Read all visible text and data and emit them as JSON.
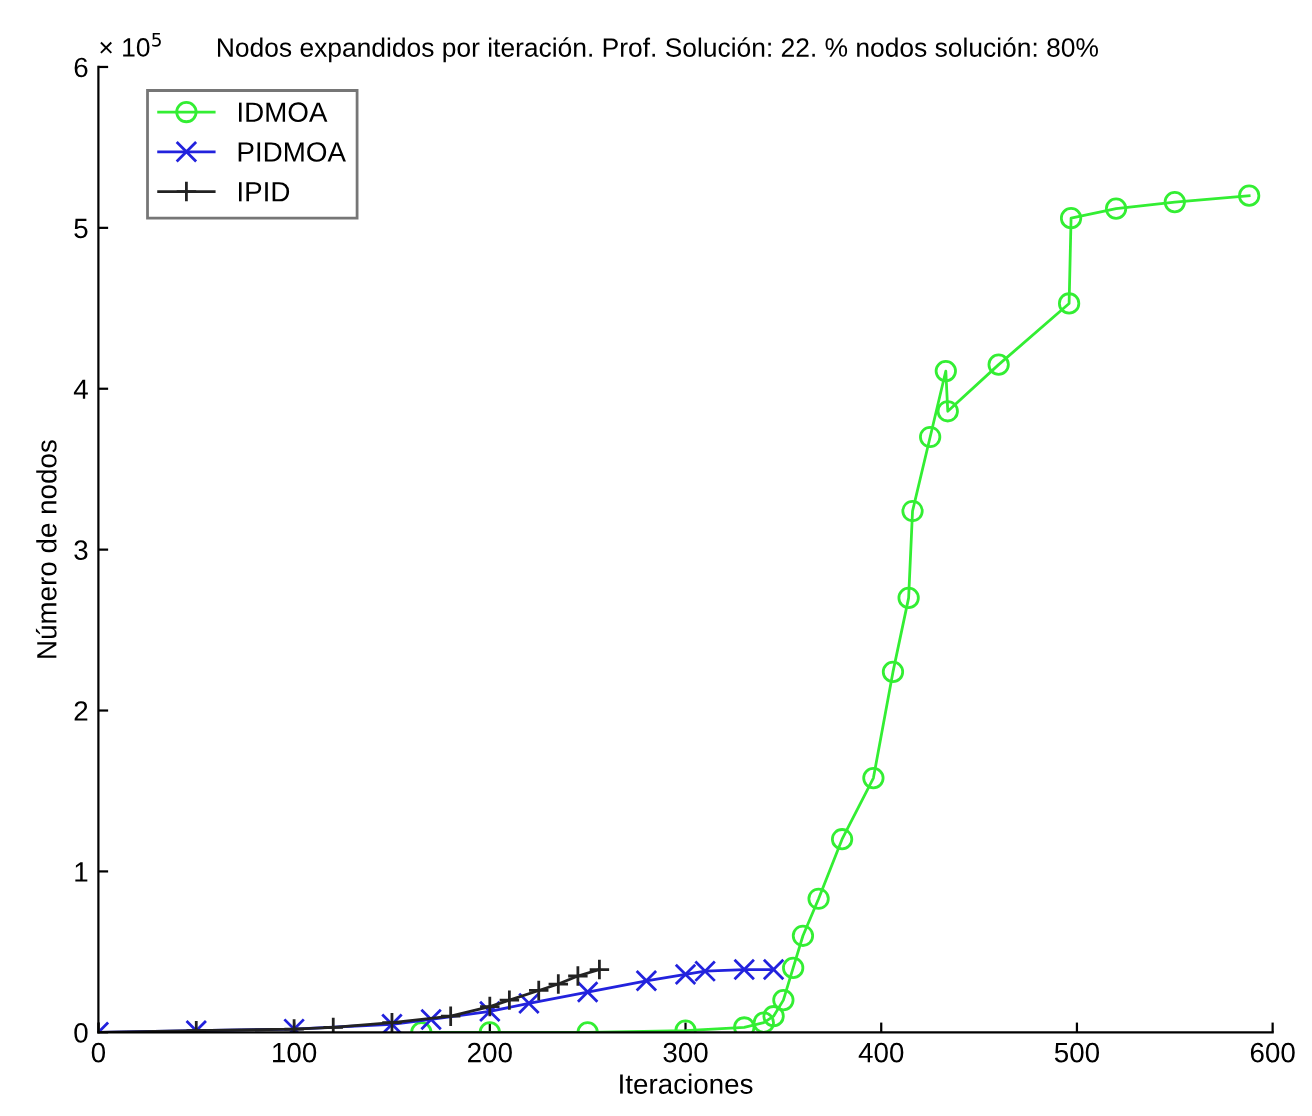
{
  "chart_data": {
    "type": "line",
    "title": "Nodos expandidos por iteración. Prof. Solución: 22. % nodos solución: 80%",
    "xlabel": "Iteraciones",
    "ylabel": "Número de nodos",
    "annotations": [
      "× 10$^{5}$"
    ],
    "xlim": [
      0,
      600
    ],
    "xticks": [
      0,
      100,
      200,
      300,
      400,
      500,
      600
    ],
    "ylim": [
      0,
      6
    ],
    "yticks": [
      0,
      1,
      2,
      3,
      4,
      5,
      6
    ],
    "grid": false,
    "legend": "top left",
    "series": [
      {
        "name": "IDMOA",
        "color": "#33ee33",
        "marker": "circle",
        "x": [
          165,
          200,
          250,
          300,
          330,
          340,
          345,
          350,
          355,
          360,
          368,
          380,
          396,
          406,
          414,
          416,
          425,
          433,
          434,
          460,
          496,
          497,
          520,
          550,
          588
        ],
        "values": [
          0,
          0,
          0,
          0.01,
          0.03,
          0.06,
          0.1,
          0.2,
          0.4,
          0.6,
          0.83,
          1.2,
          1.58,
          2.24,
          2.7,
          3.24,
          3.7,
          4.11,
          3.86,
          4.15,
          4.53,
          5.06,
          5.12,
          5.16,
          5.2
        ]
      },
      {
        "name": "PIDMOA",
        "color": "#2222dd",
        "marker": "cross",
        "x": [
          0,
          50,
          100,
          150,
          170,
          200,
          220,
          250,
          280,
          300,
          310,
          330,
          345
        ],
        "values": [
          0,
          0.01,
          0.02,
          0.05,
          0.08,
          0.13,
          0.18,
          0.25,
          0.32,
          0.36,
          0.38,
          0.39,
          0.39
        ]
      },
      {
        "name": "IPID",
        "color": "#222222",
        "marker": "plus",
        "x": [
          0,
          50,
          100,
          120,
          150,
          180,
          200,
          210,
          225,
          235,
          245,
          256
        ],
        "values": [
          0,
          0.01,
          0.02,
          0.03,
          0.06,
          0.1,
          0.16,
          0.2,
          0.26,
          0.3,
          0.35,
          0.39
        ]
      }
    ]
  }
}
